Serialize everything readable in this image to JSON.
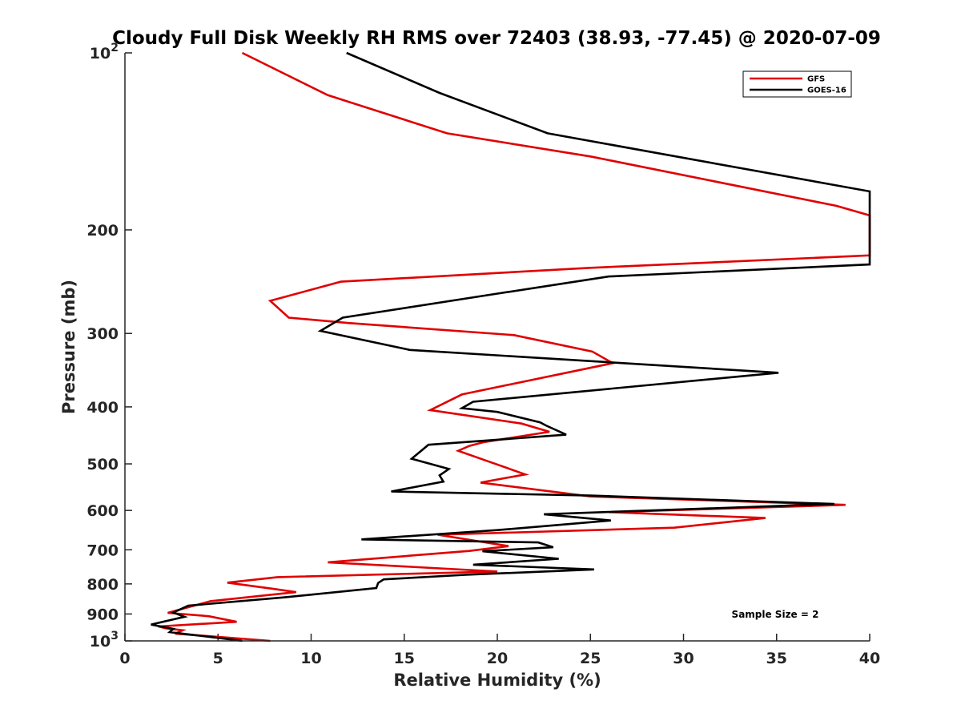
{
  "chart_data": {
    "type": "line",
    "title": "Cloudy Full Disk Weekly RH RMS over 72403 (38.93, -77.45) @ 2020-07-09",
    "xlabel": "Relative Humidity (%)",
    "ylabel": "Pressure (mb)",
    "xlim": [
      0,
      40
    ],
    "ylim": [
      100,
      1000
    ],
    "yscale": "log",
    "y_reversed": true,
    "grid": false,
    "legend_position": "top-right",
    "x_ticks": [
      "0",
      "5",
      "10",
      "15",
      "20",
      "25",
      "30",
      "35",
      "40"
    ],
    "y_ticks": [
      {
        "value": 100,
        "base": "10",
        "exp": "2"
      },
      {
        "value": 200,
        "base": "200",
        "exp": ""
      },
      {
        "value": 300,
        "base": "300",
        "exp": ""
      },
      {
        "value": 400,
        "base": "400",
        "exp": ""
      },
      {
        "value": 500,
        "base": "500",
        "exp": ""
      },
      {
        "value": 600,
        "base": "600",
        "exp": ""
      },
      {
        "value": 700,
        "base": "700",
        "exp": ""
      },
      {
        "value": 800,
        "base": "800",
        "exp": ""
      },
      {
        "value": 900,
        "base": "900",
        "exp": ""
      },
      {
        "value": 1000,
        "base": "10",
        "exp": "3"
      }
    ],
    "annotation": "Sample Size = 2",
    "series": [
      {
        "name": "GFS",
        "color": "#e00000",
        "points": [
          [
            6.3,
            100
          ],
          [
            10.9,
            118
          ],
          [
            17.3,
            137
          ],
          [
            25,
            150
          ],
          [
            38.2,
            182
          ],
          [
            40,
            189
          ],
          [
            40,
            221
          ],
          [
            25,
            232
          ],
          [
            11.6,
            245
          ],
          [
            7.8,
            264
          ],
          [
            8.8,
            282
          ],
          [
            12,
            288
          ],
          [
            20.9,
            302
          ],
          [
            25.1,
            322
          ],
          [
            26.2,
            337
          ],
          [
            18.1,
            381
          ],
          [
            16.4,
            405
          ],
          [
            21.3,
            427
          ],
          [
            22.8,
            441
          ],
          [
            19.3,
            459
          ],
          [
            18.5,
            466
          ],
          [
            17.9,
            475
          ],
          [
            19.5,
            495
          ],
          [
            21.5,
            521
          ],
          [
            19.1,
            538
          ],
          [
            25,
            568
          ],
          [
            38.7,
            587
          ],
          [
            26,
            604
          ],
          [
            34.4,
            618
          ],
          [
            29.5,
            642
          ],
          [
            16.8,
            660
          ],
          [
            20.6,
            690
          ],
          [
            18.5,
            703
          ],
          [
            10.9,
            735
          ],
          [
            20,
            762
          ],
          [
            8.2,
            779
          ],
          [
            5.5,
            796
          ],
          [
            7.9,
            815
          ],
          [
            9.2,
            826
          ],
          [
            4.6,
            856
          ],
          [
            2.3,
            896
          ],
          [
            4.5,
            908
          ],
          [
            6,
            928
          ],
          [
            1.8,
            945
          ],
          [
            2.2,
            952
          ],
          [
            3.1,
            959
          ],
          [
            2.7,
            972
          ],
          [
            7.8,
            1000
          ]
        ]
      },
      {
        "name": "GOES-16",
        "color": "#000000",
        "points": [
          [
            11.9,
            100
          ],
          [
            16.9,
            117
          ],
          [
            22.7,
            137
          ],
          [
            40,
            172
          ],
          [
            40,
            229
          ],
          [
            26,
            240
          ],
          [
            19.9,
            257
          ],
          [
            11.7,
            282
          ],
          [
            10.5,
            297
          ],
          [
            15.3,
            320
          ],
          [
            35.1,
            350
          ],
          [
            18.7,
            392
          ],
          [
            18.1,
            402
          ],
          [
            20,
            408
          ],
          [
            22.3,
            425
          ],
          [
            22.6,
            430
          ],
          [
            23.7,
            446
          ],
          [
            16.3,
            464
          ],
          [
            15.4,
            490
          ],
          [
            17.4,
            510
          ],
          [
            16.9,
            523
          ],
          [
            17.1,
            536
          ],
          [
            14.3,
            557
          ],
          [
            25,
            566
          ],
          [
            38.1,
            585
          ],
          [
            22.5,
            609
          ],
          [
            26.1,
            624
          ],
          [
            20,
            648
          ],
          [
            12.7,
            672
          ],
          [
            22.2,
            680
          ],
          [
            23,
            693
          ],
          [
            19.2,
            704
          ],
          [
            23.3,
            725
          ],
          [
            18.7,
            742
          ],
          [
            25.2,
            756
          ],
          [
            18.3,
            772
          ],
          [
            13.9,
            786
          ],
          [
            13.6,
            797
          ],
          [
            13.5,
            813
          ],
          [
            8.6,
            843
          ],
          [
            3.4,
            871
          ],
          [
            2.6,
            895
          ],
          [
            3.2,
            910
          ],
          [
            1.4,
            938
          ],
          [
            2.6,
            954
          ],
          [
            2.4,
            966
          ],
          [
            6.3,
            1000
          ]
        ]
      }
    ]
  }
}
